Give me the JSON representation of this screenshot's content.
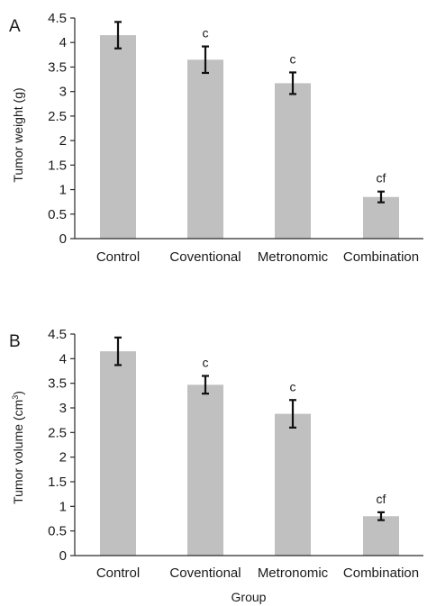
{
  "figure": {
    "xlabel": "Group"
  },
  "chart_data": [
    {
      "type": "bar",
      "panel_letter": "A",
      "ylabel": "Tumor weight (g)",
      "categories": [
        "Control",
        "Coventional",
        "Metronomic",
        "Combination"
      ],
      "values": [
        4.15,
        3.65,
        3.17,
        0.85
      ],
      "errors": [
        0.27,
        0.27,
        0.22,
        0.11
      ],
      "annotations": [
        "",
        "c",
        "c",
        "cf"
      ],
      "ylim": [
        0,
        4.5
      ],
      "yticks": [
        "0",
        "0.5",
        "1",
        "1.5",
        "2",
        "2.5",
        "3",
        "3.5",
        "4",
        "4.5"
      ],
      "grid": false,
      "bar_color": "#c0c0c0"
    },
    {
      "type": "bar",
      "panel_letter": "B",
      "ylabel_text": "Tumor volume (cm",
      "ylabel_sup": "3",
      "ylabel_close": ")",
      "categories": [
        "Control",
        "Coventional",
        "Metronomic",
        "Combination"
      ],
      "values": [
        4.15,
        3.47,
        2.88,
        0.8
      ],
      "errors": [
        0.28,
        0.18,
        0.28,
        0.08
      ],
      "annotations": [
        "",
        "c",
        "c",
        "cf"
      ],
      "ylim": [
        0,
        4.5
      ],
      "yticks": [
        "0",
        "0.5",
        "1",
        "1.5",
        "2",
        "2.5",
        "3",
        "3.5",
        "4",
        "4.5"
      ],
      "grid": false,
      "bar_color": "#c0c0c0"
    }
  ]
}
